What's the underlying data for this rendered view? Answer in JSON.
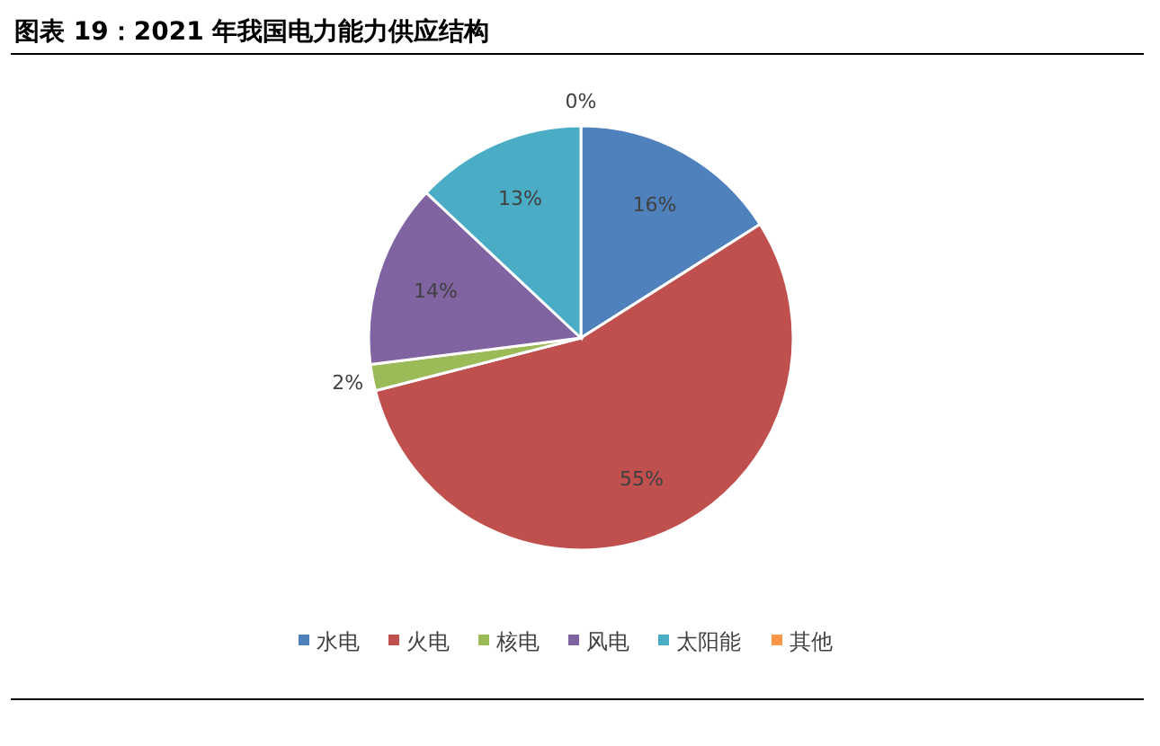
{
  "chart_data": {
    "type": "pie",
    "title": "图表 19：2021 年我国电力能力供应结构",
    "categories": [
      "水电",
      "火电",
      "核电",
      "风电",
      "太阳能",
      "其他"
    ],
    "values": [
      16,
      55,
      2,
      14,
      13,
      0
    ],
    "colors": [
      "#4f81bd",
      "#c0504d",
      "#9bbb59",
      "#8064a2",
      "#4bacc6",
      "#f79646"
    ],
    "value_labels": [
      "16%",
      "55%",
      "2%",
      "14%",
      "13%",
      "0%"
    ],
    "legend": "bottom"
  }
}
